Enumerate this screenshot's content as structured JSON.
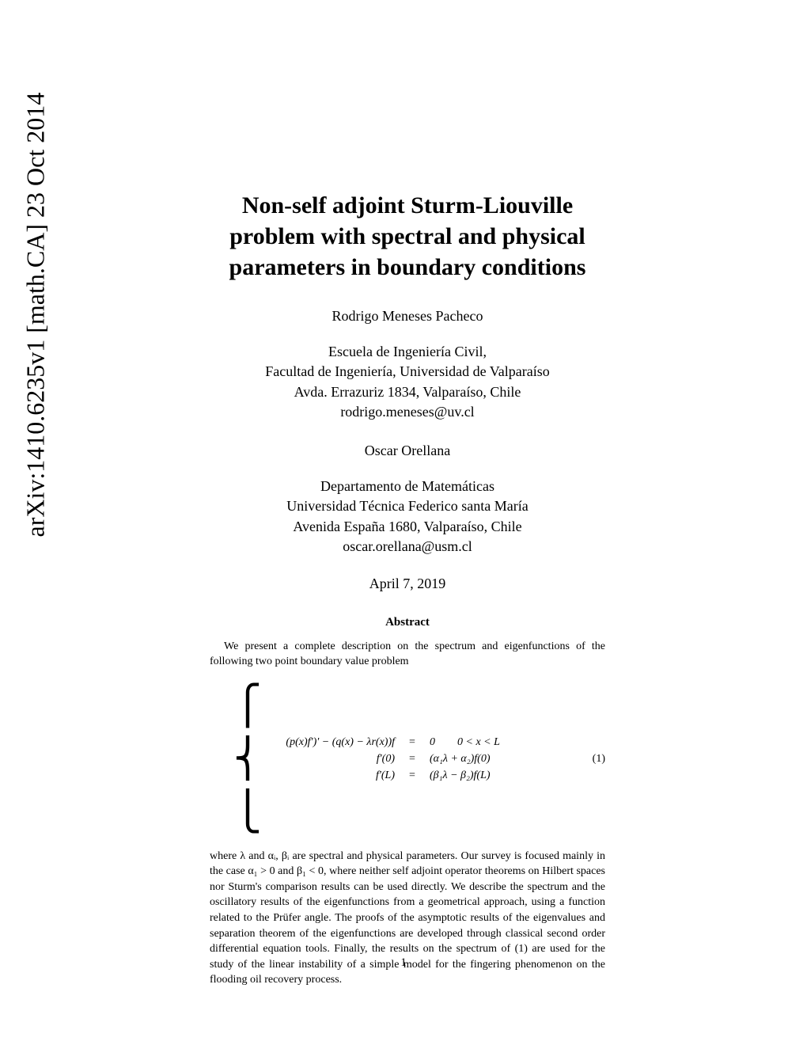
{
  "arxiv_stamp": "arXiv:1410.6235v1  [math.CA]  23 Oct 2014",
  "title_line1": "Non-self adjoint Sturm-Liouville",
  "title_line2": "problem with spectral and physical",
  "title_line3": "parameters in boundary conditions",
  "author1": {
    "name": "Rodrigo Meneses Pacheco",
    "affil1": "Escuela de Ingeniería Civil,",
    "affil2": "Facultad de Ingeniería, Universidad de Valparaíso",
    "affil3": "Avda. Errazuriz 1834, Valparaíso, Chile",
    "email": "rodrigo.meneses@uv.cl"
  },
  "author2": {
    "name": "Oscar Orellana",
    "affil1": "Departamento de Matemáticas",
    "affil2": "Universidad Técnica Federico santa María",
    "affil3": "Avenida España 1680, Valparaíso, Chile",
    "email": "oscar.orellana@usm.cl"
  },
  "date": "April 7, 2019",
  "abstract_header": "Abstract",
  "abstract_p1": "We present a complete description on the spectrum and eigenfunctions of the following two point boundary value problem",
  "equation": {
    "line1_lhs": "(p(x)f′)′ − (q(x) − λr(x))f",
    "line1_eq": "=",
    "line1_rhs": "0  0 < x < L",
    "line2_lhs": "f′(0)",
    "line2_eq": "=",
    "line2_rhs": "(α₁λ + α₂)f(0)",
    "line3_lhs": "f′(L)",
    "line3_eq": "=",
    "line3_rhs": "(β₁λ − β₂)f(L)",
    "number": "(1)"
  },
  "abstract_p2": "where λ and αᵢ, βᵢ are spectral and physical parameters. Our survey is focused mainly in the case α₁ > 0 and β₁ < 0, where neither self adjoint operator theorems on Hilbert spaces nor Sturm's comparison results can be used directly. We describe the spectrum and the oscillatory results of the eigenfunctions from a geometrical approach, using a function related to the Prüfer angle. The proofs of the asymptotic results of the eigenvalues and separation theorem of the eigenfunctions are developed through classical second order differential equation tools. Finally, the results on the spectrum of (1) are used for the study of the linear instability of a simple model for the fingering phenomenon on the flooding oil recovery process.",
  "page_number": "1"
}
